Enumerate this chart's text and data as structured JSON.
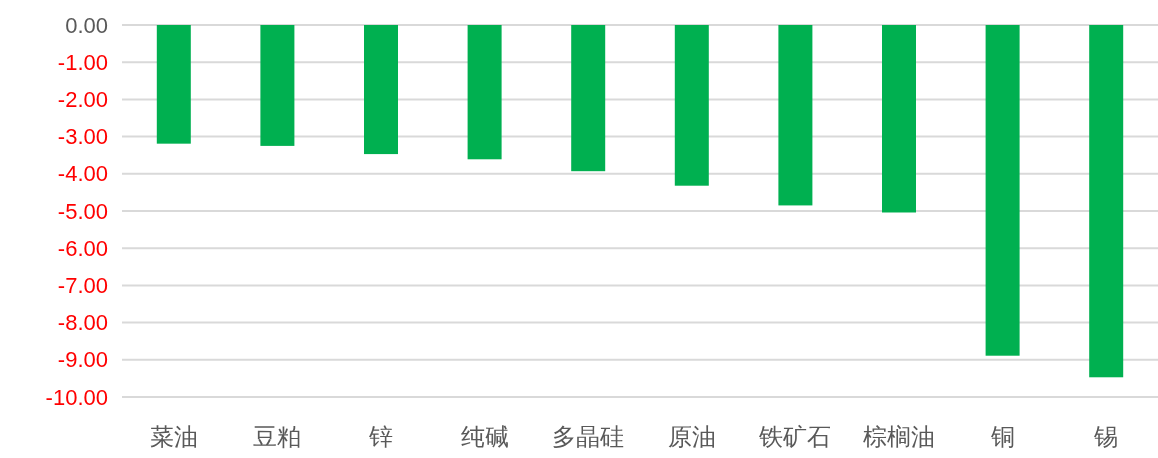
{
  "chart_data": {
    "type": "bar",
    "categories": [
      "菜油",
      "豆粕",
      "锌",
      "纯碱",
      "多晶硅",
      "原油",
      "铁矿石",
      "棕榈油",
      "铜",
      "锡"
    ],
    "values": [
      -3.19,
      -3.25,
      -3.47,
      -3.61,
      -3.93,
      -4.32,
      -4.85,
      -5.04,
      -8.89,
      -9.47
    ],
    "color": "#00b050",
    "ylim": [
      -10,
      0
    ],
    "yticks": [
      {
        "value": 0,
        "label": "0.00"
      },
      {
        "value": -1,
        "label": "-1.00"
      },
      {
        "value": -2,
        "label": "-2.00"
      },
      {
        "value": -3,
        "label": "-3.00"
      },
      {
        "value": -4,
        "label": "-4.00"
      },
      {
        "value": -5,
        "label": "-5.00"
      },
      {
        "value": -6,
        "label": "-6.00"
      },
      {
        "value": -7,
        "label": "-7.00"
      },
      {
        "value": -8,
        "label": "-8.00"
      },
      {
        "value": -9,
        "label": "-9.00"
      },
      {
        "value": -10,
        "label": "-10.00"
      }
    ],
    "grid": "y"
  }
}
